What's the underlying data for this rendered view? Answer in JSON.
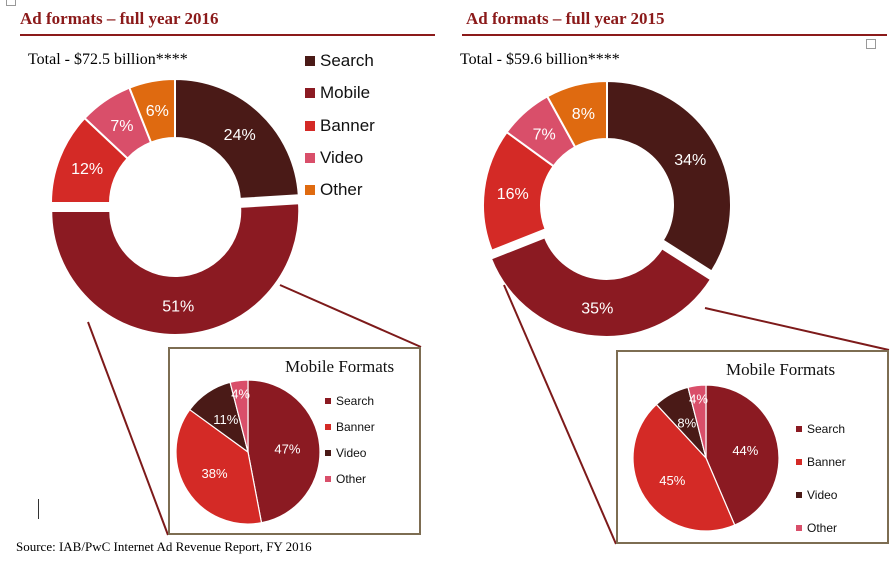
{
  "source": "Source: IAB/PwC Internet Ad Revenue Report, FY 2016",
  "colors": {
    "search": "#4a1a17",
    "mobile": "#8b1a22",
    "banner": "#d42a26",
    "video": "#d94f6a",
    "other": "#df6a10",
    "title": "#8b1a1a",
    "inset_border": "#7d6d52"
  },
  "chart_data": [
    {
      "type": "pie",
      "donut": true,
      "title": "Ad formats – full year 2016",
      "subtitle": "Total - $72.5 billion****",
      "legend": [
        "Search",
        "Mobile",
        "Banner",
        "Video",
        "Other"
      ],
      "legend_position": "right",
      "categories": [
        "Search",
        "Mobile",
        "Banner",
        "Video",
        "Other"
      ],
      "values": [
        24,
        51,
        12,
        7,
        6
      ],
      "labels": [
        "24%",
        "51%",
        "12%",
        "7%",
        "6%"
      ],
      "exploded": "Mobile",
      "inset": {
        "type": "pie",
        "title": "Mobile Formats",
        "categories": [
          "Search",
          "Banner",
          "Video",
          "Other"
        ],
        "values": [
          47,
          38,
          11,
          4
        ],
        "labels": [
          "47%",
          "38%",
          "11%",
          "4%"
        ],
        "legend_position": "right"
      }
    },
    {
      "type": "pie",
      "donut": true,
      "title": "Ad formats – full year 2015",
      "subtitle": "Total - $59.6 billion****",
      "categories": [
        "Search",
        "Mobile",
        "Banner",
        "Video",
        "Other"
      ],
      "values": [
        34,
        35,
        16,
        7,
        8
      ],
      "labels": [
        "34%",
        "35%",
        "16%",
        "7%",
        "8%"
      ],
      "exploded": "Mobile",
      "inset": {
        "type": "pie",
        "title": "Mobile Formats",
        "categories": [
          "Search",
          "Banner",
          "Video",
          "Other"
        ],
        "values": [
          44,
          45,
          8,
          4
        ],
        "labels": [
          "44%",
          "45%",
          "8%",
          "4%"
        ],
        "legend_position": "right"
      }
    }
  ]
}
